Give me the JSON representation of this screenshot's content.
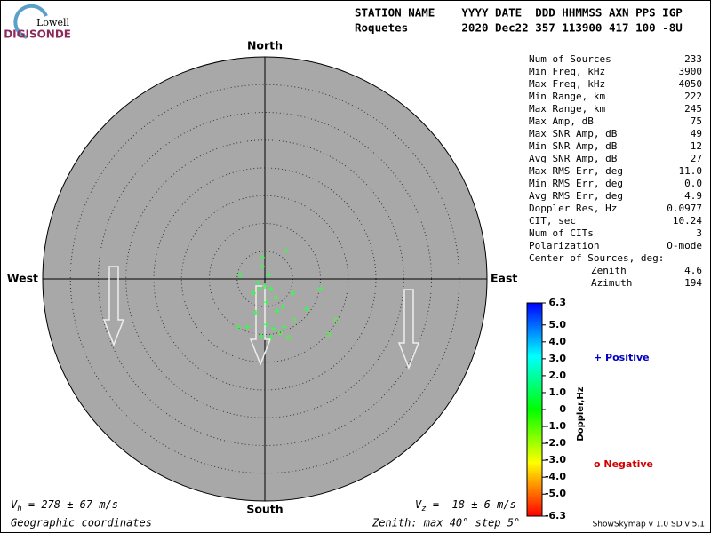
{
  "chart_data": {
    "type": "skymap",
    "logo": {
      "top": "Lowell",
      "bottom": "DIGISONDE"
    },
    "header": [
      "STATION NAME    YYYY DATE  DDD HHMMSS AXN PPS IGP",
      "Roquetes        2020 Dec22 357 113900 417 100 -8U"
    ],
    "directions": {
      "north": "North",
      "south": "South",
      "east": "East",
      "west": "West"
    },
    "zenith_max": 40,
    "zenith_step": 5,
    "stats": [
      [
        "Num of Sources",
        "233"
      ],
      [
        "Min Freq, kHz",
        "3900"
      ],
      [
        "Max Freq, kHz",
        "4050"
      ],
      [
        "Min Range, km",
        "222"
      ],
      [
        "Max Range, km",
        "245"
      ],
      [
        "Max Amp, dB",
        "75"
      ],
      [
        "Max SNR Amp, dB",
        "49"
      ],
      [
        "Min SNR Amp, dB",
        "12"
      ],
      [
        "Avg SNR Amp, dB",
        "27"
      ],
      [
        "Max RMS Err, deg",
        "11.0"
      ],
      [
        "Min RMS Err, deg",
        "0.0"
      ],
      [
        "Avg RMS Err, deg",
        "4.9"
      ],
      [
        "Doppler Res, Hz",
        "0.0977"
      ],
      [
        "CIT, sec",
        "10.24"
      ],
      [
        "Num of CITs",
        "3"
      ],
      [
        "Polarization",
        "O-mode"
      ]
    ],
    "center_title": "Center of Sources, deg:",
    "center": [
      [
        "Zenith",
        "4.6"
      ],
      [
        "Azimuth",
        "194"
      ]
    ],
    "colorbar": {
      "title": "Doppler,Hz",
      "ylim": [
        -6.3,
        6.3
      ],
      "yticks": [
        6.3,
        {
          "value": 5,
          "label": "5.0"
        },
        {
          "value": 4,
          "label": "4.0"
        },
        {
          "value": 3,
          "label": "3.0"
        },
        {
          "value": 2,
          "label": "2.0"
        },
        {
          "value": 1,
          "label": "1.0"
        },
        0,
        {
          "value": -1,
          "label": "-1.0"
        },
        {
          "value": -2,
          "label": "-2.0"
        },
        {
          "value": -3,
          "label": "-3.0"
        },
        {
          "value": -4,
          "label": "-4.0"
        },
        {
          "value": -5,
          "label": "-5.0"
        },
        -6.3
      ]
    },
    "legend": {
      "positive": "+ Positive",
      "negative": "o Negative"
    },
    "sources": {
      "zenith": [
        1.3,
        1.4,
        2.1,
        3.3,
        3.9,
        4.2,
        9.1,
        10.1,
        8.2,
        9.3,
        9.0,
        10.3,
        10.6,
        11.4,
        9.2,
        9.9,
        2.3,
        3.9,
        6.4,
        4.5,
        10.1,
        14.8,
        15.2,
        9.3,
        5.7,
        6.3,
        6.2,
        0.9,
        2.1,
        5.9
      ],
      "azimuth": [
        180,
        243,
        148,
        219,
        150,
        176,
        170,
        164,
        178,
        158,
        145,
        183,
        174,
        158,
        200,
        209,
        348,
        353,
        37,
        278,
        100,
        120,
        131,
        126,
        117,
        195,
        159,
        45,
        207,
        147
      ],
      "doppler": [
        0.3,
        0.3,
        0.5,
        0.3,
        -0.3,
        0.3,
        0.3,
        -0.3,
        0.3,
        0.3,
        -0.3,
        0.3,
        0.3,
        -0.3,
        0.3,
        0.3,
        0.5,
        0.3,
        0.3,
        0.3,
        0.3,
        -0.3,
        -0.3,
        0.3,
        0.3,
        0.3,
        0.3,
        0.5,
        0.3,
        0.3
      ]
    },
    "vh": {
      "symbol": "V",
      "sub": "h",
      "text": " = 278 ± 67 m/s"
    },
    "vz": {
      "symbol": "V",
      "sub": "z",
      "text": " = -18 ± 6 m/s"
    },
    "footer_left": "Geographic coordinates",
    "footer_mid": "Zenith: max 40°  step 5°",
    "footer_right": "ShowSkymap v 1.0  SD v 5.1"
  }
}
